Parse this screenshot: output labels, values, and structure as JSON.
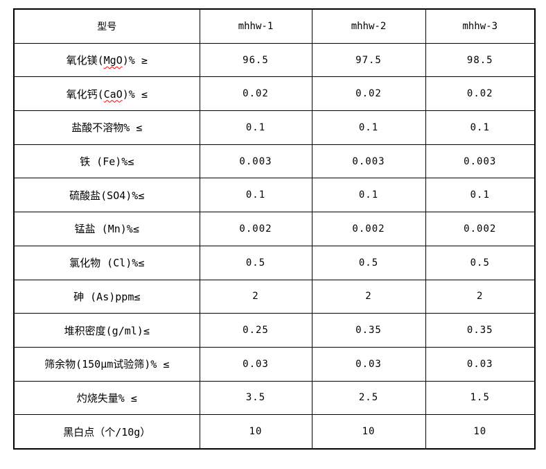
{
  "page": {
    "background": "#ffffff",
    "border_color": "#000000",
    "text_color": "#000000",
    "squiggle_color": "#ff0000"
  },
  "table": {
    "columns": [
      "型号",
      "mhhw-1",
      "mhhw-2",
      "mhhw-3"
    ],
    "rows": [
      {
        "label_pre": "氧化镁(",
        "label_mark": "MgO",
        "label_post": ")% ≥",
        "values": [
          "96.5",
          "97.5",
          "98.5"
        ]
      },
      {
        "label_pre": "氧化钙(",
        "label_mark": "CaO",
        "label_post": ")% ≤",
        "values": [
          "0.02",
          "0.02",
          "0.02"
        ]
      },
      {
        "label_pre": "盐酸不溶物% ≤",
        "label_mark": "",
        "label_post": "",
        "values": [
          "0.1",
          "0.1",
          "0.1"
        ]
      },
      {
        "label_pre": "铁 (Fe)%≤",
        "label_mark": "",
        "label_post": "",
        "values": [
          "0.003",
          "0.003",
          "0.003"
        ]
      },
      {
        "label_pre": "硫酸盐(SO4)%≤",
        "label_mark": "",
        "label_post": "",
        "values": [
          "0.1",
          "0.1",
          "0.1"
        ]
      },
      {
        "label_pre": "锰盐 (Mn)%≤",
        "label_mark": "",
        "label_post": "",
        "values": [
          "0.002",
          "0.002",
          "0.002"
        ]
      },
      {
        "label_pre": "氯化物 (Cl)%≤",
        "label_mark": "",
        "label_post": "",
        "values": [
          "0.5",
          "0.5",
          "0.5"
        ]
      },
      {
        "label_pre": "砷 (As)ppm≤",
        "label_mark": "",
        "label_post": "",
        "values": [
          "2",
          "2",
          "2"
        ]
      },
      {
        "label_pre": "堆积密度(g/ml)≤",
        "label_mark": "",
        "label_post": "",
        "values": [
          "0.25",
          "0.35",
          "0.35"
        ]
      },
      {
        "label_pre": "筛余物(150μm试验筛)% ≤",
        "label_mark": "",
        "label_post": "",
        "values": [
          "0.03",
          "0.03",
          "0.03"
        ]
      },
      {
        "label_pre": "灼烧失量% ≤",
        "label_mark": "",
        "label_post": "",
        "values": [
          "3.5",
          "2.5",
          "1.5"
        ]
      },
      {
        "label_pre": "黑白点（个/10g）",
        "label_mark": "",
        "label_post": "",
        "values": [
          "10",
          "10",
          "10"
        ]
      }
    ]
  },
  "chart_data": {
    "type": "table",
    "title": "",
    "columns": [
      "型号",
      "mhhw-1",
      "mhhw-2",
      "mhhw-3"
    ],
    "rows": [
      [
        "氧化镁(MgO)% ≥",
        "96.5",
        "97.5",
        "98.5"
      ],
      [
        "氧化钙(CaO)% ≤",
        "0.02",
        "0.02",
        "0.02"
      ],
      [
        "盐酸不溶物% ≤",
        "0.1",
        "0.1",
        "0.1"
      ],
      [
        "铁 (Fe)%≤",
        "0.003",
        "0.003",
        "0.003"
      ],
      [
        "硫酸盐(SO4)%≤",
        "0.1",
        "0.1",
        "0.1"
      ],
      [
        "锰盐 (Mn)%≤",
        "0.002",
        "0.002",
        "0.002"
      ],
      [
        "氯化物 (Cl)%≤",
        "0.5",
        "0.5",
        "0.5"
      ],
      [
        "砷 (As)ppm≤",
        "2",
        "2",
        "2"
      ],
      [
        "堆积密度(g/ml)≤",
        "0.25",
        "0.35",
        "0.35"
      ],
      [
        "筛余物(150μm试验筛)% ≤",
        "0.03",
        "0.03",
        "0.03"
      ],
      [
        "灼烧失量% ≤",
        "3.5",
        "2.5",
        "1.5"
      ],
      [
        "黑白点（个/10g）",
        "10",
        "10",
        "10"
      ]
    ]
  }
}
